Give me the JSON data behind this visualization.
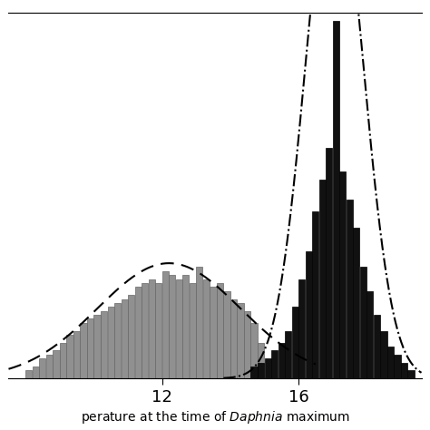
{
  "gray_bar_positions": [
    8.0,
    8.2,
    8.4,
    8.6,
    8.8,
    9.0,
    9.2,
    9.4,
    9.6,
    9.8,
    10.0,
    10.2,
    10.4,
    10.6,
    10.8,
    11.0,
    11.2,
    11.4,
    11.6,
    11.8,
    12.0,
    12.2,
    12.4,
    12.6,
    12.8,
    13.0,
    13.2,
    13.4,
    13.6,
    13.8,
    14.0,
    14.2,
    14.4,
    14.6,
    14.8
  ],
  "gray_bar_heights": [
    2,
    3,
    5,
    6,
    7,
    9,
    11,
    12,
    14,
    15,
    16,
    17,
    18,
    19,
    20,
    21,
    23,
    24,
    25,
    24,
    27,
    26,
    25,
    26,
    24,
    28,
    25,
    23,
    24,
    22,
    20,
    19,
    17,
    14,
    9
  ],
  "black_bar_positions": [
    14.6,
    14.8,
    15.0,
    15.2,
    15.4,
    15.6,
    15.8,
    16.0,
    16.2,
    16.4,
    16.6,
    16.8,
    17.0,
    17.2,
    17.4,
    17.6,
    17.8,
    18.0,
    18.2,
    18.4,
    18.6,
    18.8,
    19.0,
    19.2
  ],
  "black_bar_heights": [
    3,
    4,
    5,
    7,
    9,
    12,
    18,
    25,
    32,
    42,
    50,
    58,
    90,
    52,
    45,
    38,
    28,
    22,
    16,
    12,
    8,
    6,
    4,
    2
  ],
  "gray_curve_mean": 12.2,
  "gray_curve_std": 2.1,
  "gray_curve_amplitude": 29,
  "black_curve_mean": 17.05,
  "black_curve_std": 0.85,
  "black_curve_amplitude": 130,
  "bar_width": 0.19,
  "gray_color": "#909090",
  "black_color": "#111111",
  "gray_edge_color": "#666666",
  "black_edge_color": "#000000",
  "xticks": [
    12,
    16
  ],
  "ylim": [
    0,
    92
  ],
  "xlim": [
    7.5,
    19.6
  ],
  "figsize": [
    4.74,
    4.74
  ],
  "dpi": 100,
  "top_border": true
}
